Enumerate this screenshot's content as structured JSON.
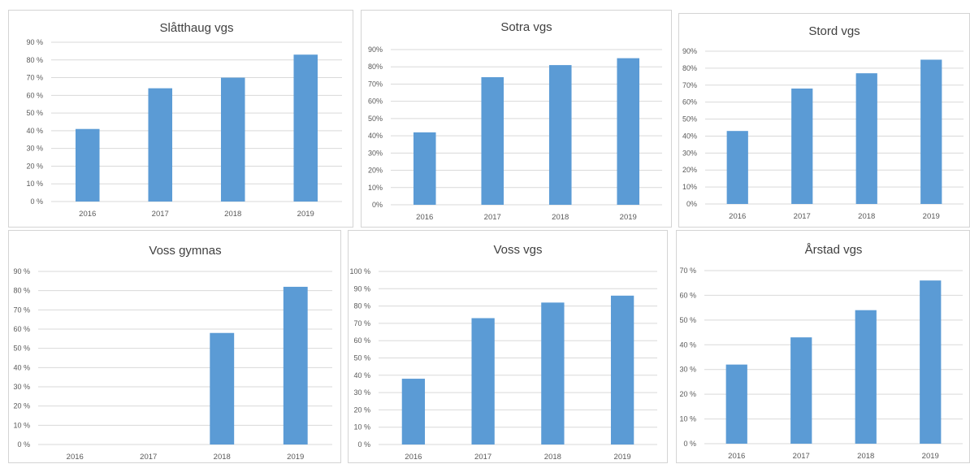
{
  "colors": {
    "bar": "#5b9bd5",
    "grid": "#d9d9d9",
    "text": "#595959",
    "title": "#404040"
  },
  "chart_data": [
    {
      "type": "bar",
      "title": "Slåtthaug vgs",
      "categories": [
        "2016",
        "2017",
        "2018",
        "2019"
      ],
      "values": [
        41,
        64,
        70,
        83
      ],
      "yticks": [
        "0 %",
        "10 %",
        "20 %",
        "30 %",
        "40 %",
        "50 %",
        "60 %",
        "70 %",
        "80 %",
        "90 %"
      ],
      "ylim": [
        0,
        90
      ],
      "grid": true
    },
    {
      "type": "bar",
      "title": "Sotra vgs",
      "categories": [
        "2016",
        "2017",
        "2018",
        "2019"
      ],
      "values": [
        42,
        74,
        81,
        85
      ],
      "yticks": [
        "0%",
        "10%",
        "20%",
        "30%",
        "40%",
        "50%",
        "60%",
        "70%",
        "80%",
        "90%"
      ],
      "ylim": [
        0,
        90
      ],
      "grid": true
    },
    {
      "type": "bar",
      "title": "Stord vgs",
      "categories": [
        "2016",
        "2017",
        "2018",
        "2019"
      ],
      "values": [
        43,
        68,
        77,
        85
      ],
      "yticks": [
        "0%",
        "10%",
        "20%",
        "30%",
        "40%",
        "50%",
        "60%",
        "70%",
        "80%",
        "90%"
      ],
      "ylim": [
        0,
        90
      ],
      "grid": true
    },
    {
      "type": "bar",
      "title": "Voss gymnas",
      "categories": [
        "2016",
        "2017",
        "2018",
        "2019"
      ],
      "values": [
        0,
        0,
        58,
        82
      ],
      "yticks": [
        "0 %",
        "10 %",
        "20 %",
        "30 %",
        "40 %",
        "50 %",
        "60 %",
        "70 %",
        "80 %",
        "90 %"
      ],
      "ylim": [
        0,
        90
      ],
      "grid": true
    },
    {
      "type": "bar",
      "title": "Voss vgs",
      "categories": [
        "2016",
        "2017",
        "2018",
        "2019"
      ],
      "values": [
        38,
        73,
        82,
        86
      ],
      "yticks": [
        "0 %",
        "10 %",
        "20 %",
        "30 %",
        "40 %",
        "50 %",
        "60 %",
        "70 %",
        "80 %",
        "90 %",
        "100 %"
      ],
      "ylim": [
        0,
        100
      ],
      "grid": true
    },
    {
      "type": "bar",
      "title": "Årstad vgs",
      "categories": [
        "2016",
        "2017",
        "2018",
        "2019"
      ],
      "values": [
        32,
        43,
        54,
        66
      ],
      "yticks": [
        "0 %",
        "10 %",
        "20 %",
        "30 %",
        "40 %",
        "50 %",
        "60 %",
        "70 %"
      ],
      "ylim": [
        0,
        70
      ],
      "grid": true
    }
  ]
}
